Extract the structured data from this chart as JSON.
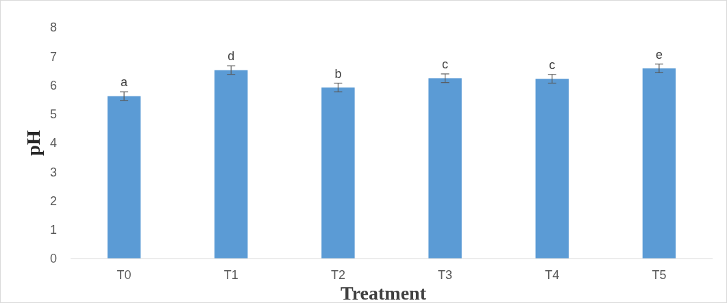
{
  "chart_data": {
    "type": "bar",
    "xlabel": "Treatment",
    "ylabel": "pH",
    "categories": [
      "T0",
      "T1",
      "T2",
      "T3",
      "T4",
      "T5"
    ],
    "values": [
      5.62,
      6.52,
      5.92,
      6.24,
      6.22,
      6.58
    ],
    "errors": [
      0.15,
      0.15,
      0.15,
      0.15,
      0.15,
      0.15
    ],
    "color": "#5b9bd5",
    "ylim": [
      0,
      8
    ],
    "yticks": [
      0,
      1,
      2,
      3,
      4,
      5,
      6,
      7,
      8
    ],
    "grid": false,
    "annotations": [
      {
        "text": "a",
        "x": "T0",
        "y": 5.77
      },
      {
        "text": "d",
        "x": "T1",
        "y": 6.67
      },
      {
        "text": "b",
        "x": "T2",
        "y": 6.07
      },
      {
        "text": "c",
        "x": "T3",
        "y": 6.39
      },
      {
        "text": "c",
        "x": "T4",
        "y": 6.37
      },
      {
        "text": "e",
        "x": "T5",
        "y": 6.73
      }
    ]
  }
}
